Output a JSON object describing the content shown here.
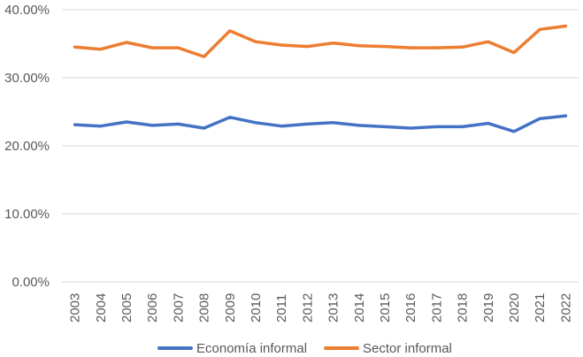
{
  "chart_data": {
    "type": "line",
    "title": "",
    "xlabel": "",
    "ylabel": "",
    "ylim": [
      0,
      40
    ],
    "y_ticks": [
      "0.00%",
      "10.00%",
      "20.00%",
      "30.00%",
      "40.00%"
    ],
    "y_tick_values": [
      0,
      10,
      20,
      30,
      40
    ],
    "categories": [
      "2003",
      "2004",
      "2005",
      "2006",
      "2007",
      "2008",
      "2009",
      "2010",
      "2011",
      "2012",
      "2013",
      "2014",
      "2015",
      "2016",
      "2017",
      "2018",
      "2019",
      "2020",
      "2021",
      "2022"
    ],
    "grid": true,
    "legend_position": "bottom",
    "series": [
      {
        "name": "Economía informal",
        "color": "#4472c4",
        "values": [
          23.1,
          22.9,
          23.5,
          23.0,
          23.2,
          22.6,
          24.2,
          23.4,
          22.9,
          23.2,
          23.4,
          23.0,
          22.8,
          22.6,
          22.8,
          22.8,
          23.3,
          22.1,
          24.0,
          24.4
        ]
      },
      {
        "name": "Sector informal",
        "color": "#ed7d31",
        "values": [
          34.5,
          34.2,
          35.2,
          34.4,
          34.4,
          33.1,
          36.9,
          35.3,
          34.8,
          34.6,
          35.1,
          34.7,
          34.6,
          34.4,
          34.4,
          34.5,
          35.3,
          33.7,
          37.1,
          37.6
        ]
      }
    ]
  }
}
